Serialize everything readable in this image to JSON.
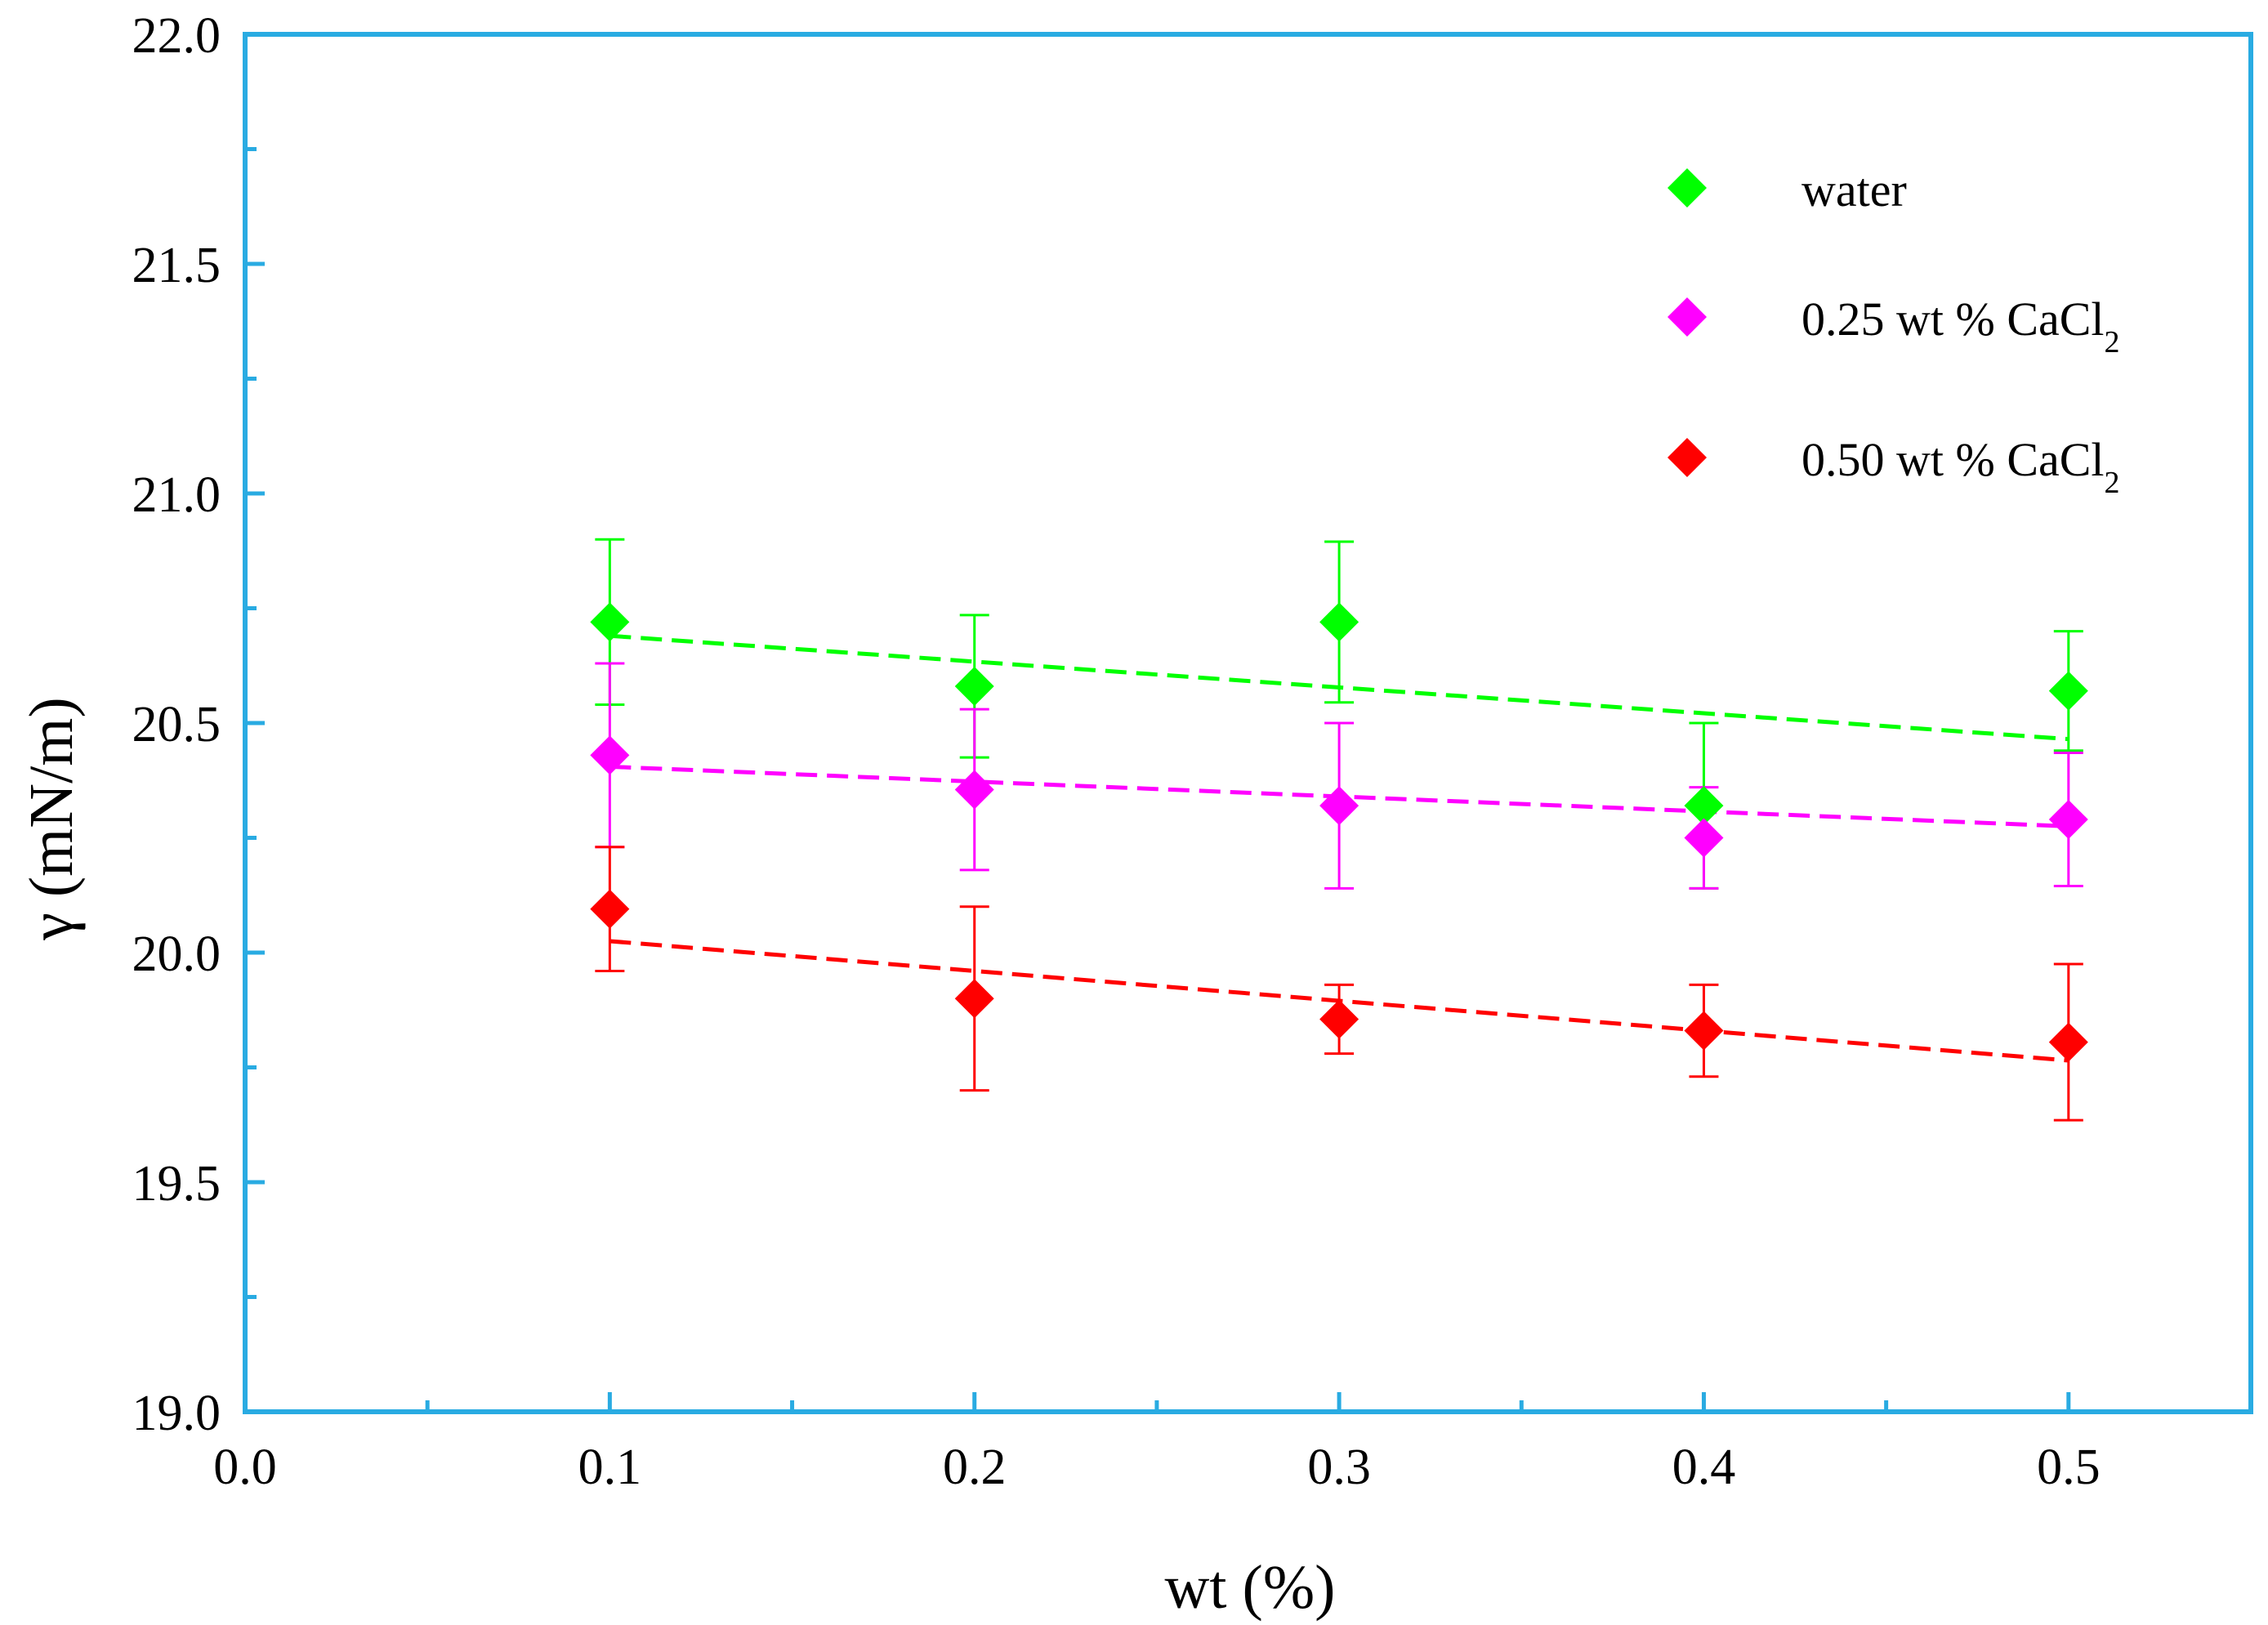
{
  "chart_data": {
    "type": "scatter",
    "title": "",
    "xlabel": "wt (%)",
    "ylabel": "γ (mN/m)",
    "xlim": [
      0.0,
      0.55
    ],
    "ylim": [
      19.0,
      22.0
    ],
    "x_ticks": [
      "0.0",
      "0.1",
      "0.2",
      "0.3",
      "0.4",
      "0.5"
    ],
    "y_ticks": [
      "19.0",
      "19.5",
      "20.0",
      "20.5",
      "21.0",
      "21.5",
      "22.0"
    ],
    "grid": false,
    "legend_position": "top-right",
    "colors": {
      "axis": "#29abe2"
    },
    "series": [
      {
        "name": "water",
        "label_main": "water",
        "label_sub": "",
        "color": "#00ff00",
        "marker": "diamond",
        "x": [
          0.1,
          0.2,
          0.3,
          0.4,
          0.5
        ],
        "y": [
          20.72,
          20.58,
          20.72,
          20.32,
          20.57
        ],
        "err": [
          0.18,
          0.155,
          0.175,
          0.18,
          0.13
        ],
        "fit": {
          "style": "dashed",
          "x": [
            0.1,
            0.5
          ],
          "y": [
            20.69,
            20.465
          ]
        }
      },
      {
        "name": "0.25 wt % CaCl2",
        "label_main": "0.25 wt % CaCl",
        "label_sub": "2",
        "color": "#ff00ff",
        "marker": "diamond",
        "x": [
          0.1,
          0.2,
          0.3,
          0.4,
          0.5
        ],
        "y": [
          20.43,
          20.355,
          20.32,
          20.25,
          20.29
        ],
        "err": [
          0.2,
          0.175,
          0.18,
          0.11,
          0.145
        ],
        "fit": {
          "style": "dashed",
          "x": [
            0.1,
            0.5
          ],
          "y": [
            20.405,
            20.275
          ]
        }
      },
      {
        "name": "0.50 wt % CaCl2",
        "label_main": "0.50 wt % CaCl",
        "label_sub": "2",
        "color": "#ff0000",
        "marker": "diamond",
        "x": [
          0.1,
          0.2,
          0.3,
          0.4,
          0.5
        ],
        "y": [
          20.095,
          19.9,
          19.855,
          19.83,
          19.805
        ],
        "err": [
          0.135,
          0.2,
          0.075,
          0.1,
          0.17
        ],
        "fit": {
          "style": "dashed",
          "x": [
            0.1,
            0.5
          ],
          "y": [
            20.025,
            19.765
          ]
        }
      }
    ]
  }
}
